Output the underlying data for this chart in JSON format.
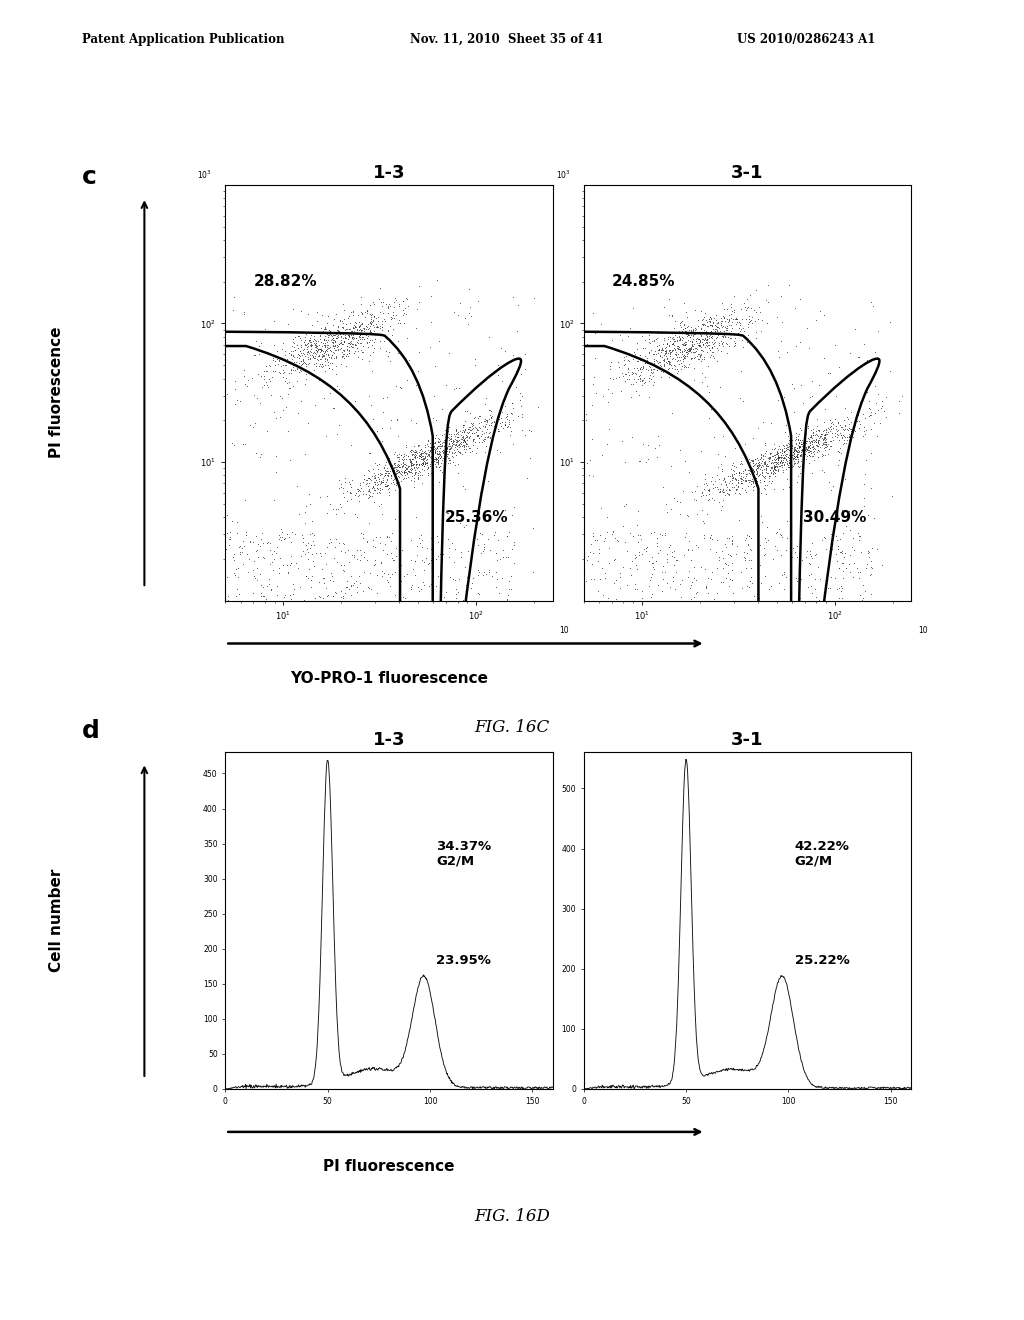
{
  "header_left": "Patent Application Publication",
  "header_mid": "Nov. 11, 2010  Sheet 35 of 41",
  "header_right": "US 2010/0286243 A1",
  "panel_c_label": "c",
  "panel_d_label": "d",
  "plot1_title": "1-3",
  "plot2_title": "3-1",
  "c_pct_upper_1": "28.82%",
  "c_pct_lower_1": "25.36%",
  "c_pct_upper_2": "24.85%",
  "c_pct_lower_2": "30.49%",
  "c_xlabel": "YO-PRO-1 fluorescence",
  "c_ylabel": "PI fluorescence",
  "c_fig_label": "FIG. 16C",
  "d_pct_g2m_1": "34.37%",
  "d_g2m_1": "G2/M",
  "d_pct_s_1": "23.95%",
  "d_pct_g2m_2": "42.22%",
  "d_g2m_2": "G2/M",
  "d_pct_s_2": "25.22%",
  "d_xlabel": "PI fluorescence",
  "d_ylabel": "Cell number",
  "d_fig_label": "FIG. 16D",
  "bg_color": "#ffffff",
  "scatter_color": "#222222",
  "line_color": "#111111",
  "c_xticks": [
    "10¹",
    "10²",
    "10"
  ],
  "c_yticks": [
    "10¹",
    "10²",
    "10³"
  ],
  "d1_yticks": [
    "0",
    "50",
    "100",
    "150",
    "200",
    "250",
    "300",
    "350",
    "400",
    "450"
  ],
  "d2_yticks": [
    "0",
    "100",
    "200",
    "300",
    "400",
    "500"
  ],
  "d_xticks": [
    "0",
    "50",
    "100",
    "150"
  ]
}
